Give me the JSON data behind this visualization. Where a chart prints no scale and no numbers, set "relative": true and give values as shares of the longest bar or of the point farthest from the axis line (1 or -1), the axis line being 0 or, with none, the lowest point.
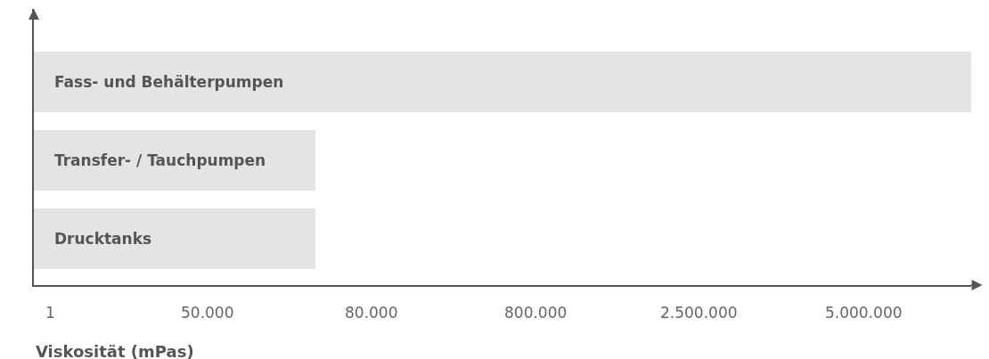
{
  "chart_data": {
    "type": "bar",
    "orientation": "horizontal",
    "relative": true,
    "categories": [
      "Fass- und Behälterpumpen",
      "Transfer- / Tauchpumpen",
      "Drucktanks"
    ],
    "values": [
      1,
      0.3,
      0.3
    ],
    "color": "#e4e4e4",
    "xlabel": "Viskosität (mPas)",
    "annotations": [
      "1",
      "50.000",
      "80.000",
      "800.000",
      "2.500.000",
      "5.000.000"
    ]
  }
}
